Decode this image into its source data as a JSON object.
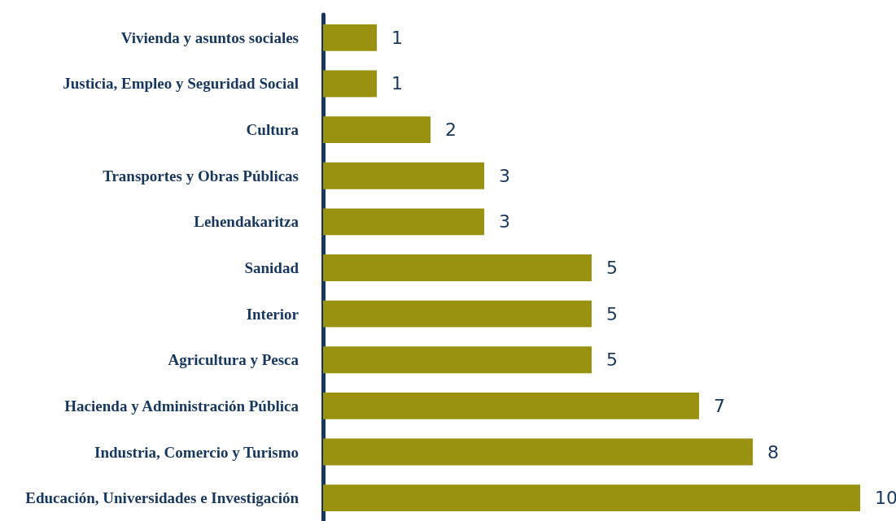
{
  "chart_data": {
    "type": "bar",
    "orientation": "horizontal",
    "categories": [
      "Vivienda y asuntos sociales",
      "Justicia, Empleo y Seguridad Social",
      "Cultura",
      "Transportes y Obras Públicas",
      "Lehendakaritza",
      "Sanidad",
      "Interior",
      "Agricultura y Pesca",
      "Hacienda y Administración Pública",
      "Industria, Comercio y Turismo",
      "Educación, Universidades e Investigación"
    ],
    "values": [
      1,
      1,
      2,
      3,
      3,
      5,
      5,
      5,
      7,
      8,
      10
    ],
    "color": "#999210",
    "data_labels": true
  }
}
